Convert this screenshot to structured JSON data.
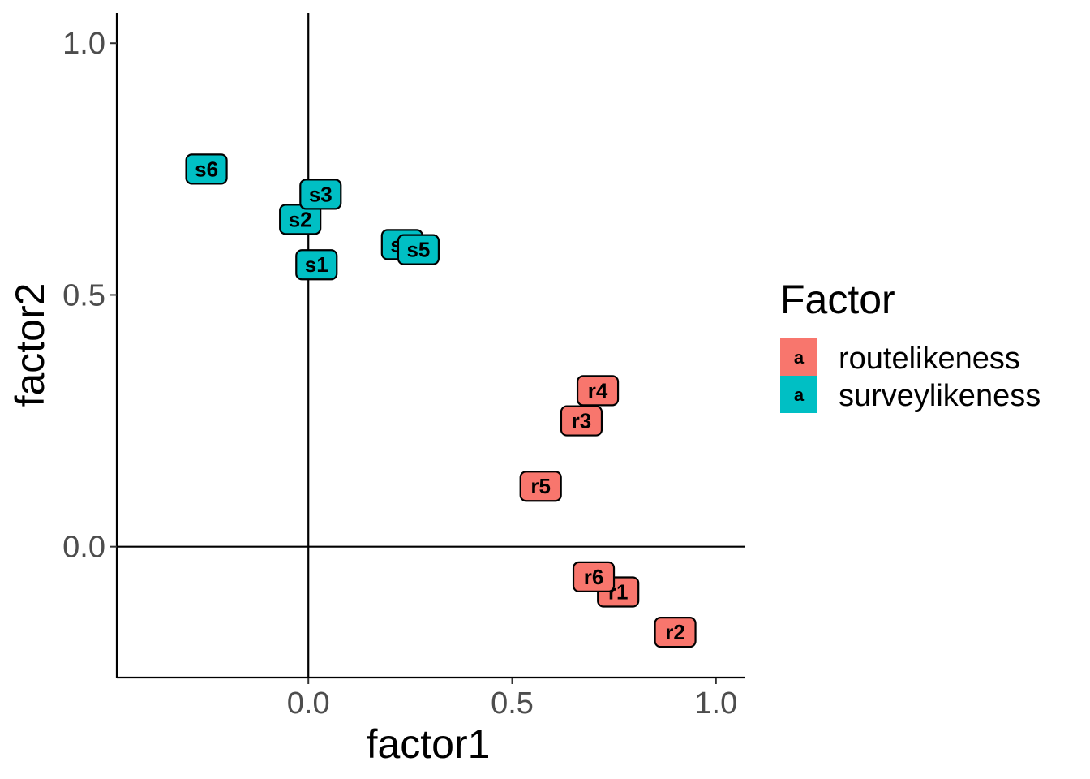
{
  "chart_data": {
    "type": "scatter",
    "title": "",
    "xlabel": "factor1",
    "ylabel": "factor2",
    "xlim": [
      -0.47,
      1.07
    ],
    "ylim": [
      -0.26,
      1.06
    ],
    "x_ticks": [
      {
        "value": 0.0,
        "label": "0.0"
      },
      {
        "value": 0.5,
        "label": "0.5"
      },
      {
        "value": 1.0,
        "label": "1.0"
      }
    ],
    "y_ticks": [
      {
        "value": 0.0,
        "label": "0.0"
      },
      {
        "value": 0.5,
        "label": "0.5"
      },
      {
        "value": 1.0,
        "label": "1.0"
      }
    ],
    "reference_lines": {
      "x": 0,
      "y": 0
    },
    "grid": false,
    "legend": {
      "title": "Factor",
      "placement": "right",
      "key_glyph": "a",
      "entries": [
        {
          "name": "routelikeness",
          "color": "#F8766D"
        },
        {
          "name": "surveylikeness",
          "color": "#00BFC4"
        }
      ]
    },
    "series": [
      {
        "name": "routelikeness",
        "color": "#F8766D",
        "points": [
          {
            "label": "r1",
            "x": 0.76,
            "y": -0.09
          },
          {
            "label": "r2",
            "x": 0.9,
            "y": -0.17
          },
          {
            "label": "r3",
            "x": 0.67,
            "y": 0.25
          },
          {
            "label": "r4",
            "x": 0.71,
            "y": 0.31
          },
          {
            "label": "r5",
            "x": 0.57,
            "y": 0.12
          },
          {
            "label": "r6",
            "x": 0.7,
            "y": -0.06
          }
        ]
      },
      {
        "name": "surveylikeness",
        "color": "#00BFC4",
        "points": [
          {
            "label": "s1",
            "x": 0.02,
            "y": 0.56
          },
          {
            "label": "s2",
            "x": -0.02,
            "y": 0.65
          },
          {
            "label": "s3",
            "x": 0.03,
            "y": 0.7
          },
          {
            "label": "s4",
            "x": 0.23,
            "y": 0.6
          },
          {
            "label": "s5",
            "x": 0.27,
            "y": 0.59
          },
          {
            "label": "s6",
            "x": -0.25,
            "y": 0.75
          }
        ]
      }
    ]
  }
}
